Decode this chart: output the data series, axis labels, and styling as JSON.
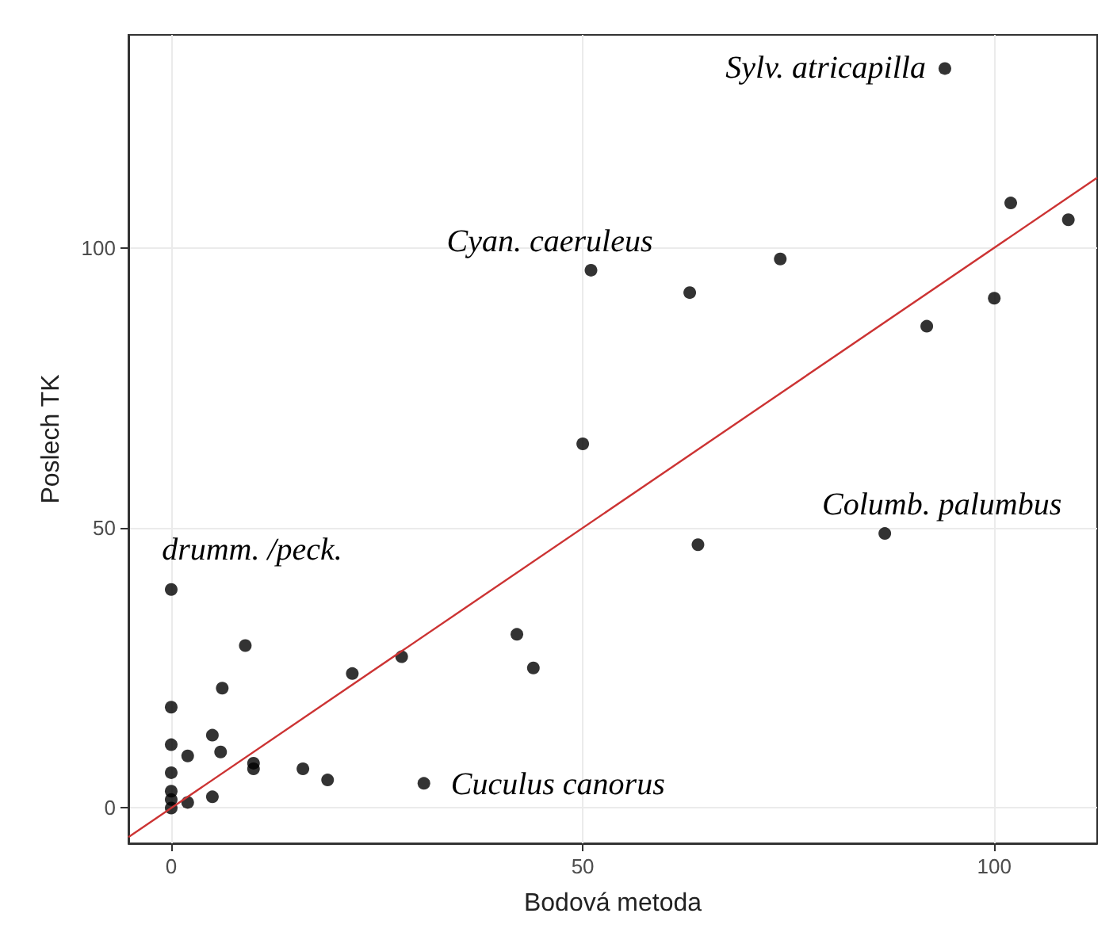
{
  "chart_data": {
    "type": "scatter",
    "xlabel": "Bodová metoda",
    "ylabel": "Poslech TK",
    "xlim": [
      -5.2,
      112.5
    ],
    "ylim": [
      -6.3,
      138
    ],
    "xticks": [
      0,
      50,
      100
    ],
    "yticks": [
      0,
      50,
      100
    ],
    "grid": true,
    "marker": "circle",
    "series": [
      {
        "color": "#000000",
        "x": [
          0,
          0,
          0,
          0,
          0,
          0,
          0,
          2,
          2,
          5,
          5,
          6.2,
          6,
          9,
          10,
          10,
          16,
          19,
          22,
          28,
          30.7,
          42,
          44,
          50,
          51,
          63,
          64,
          74,
          86.7,
          91.8,
          100,
          102,
          109,
          94
        ],
        "values": [
          39,
          18,
          11.3,
          6.3,
          3,
          1.5,
          0,
          9.3,
          1,
          2,
          13,
          21.4,
          10,
          29,
          8,
          7,
          7,
          5,
          24,
          27,
          4.4,
          31,
          25,
          65,
          96,
          92,
          47,
          98,
          49,
          86,
          91,
          108,
          105,
          132
        ]
      },
      {
        "type": "line",
        "color": "#cc3333",
        "x": [
          -5.2,
          112.5
        ],
        "values": [
          -5.2,
          112.5
        ],
        "marker": "none"
      }
    ],
    "annotations": [
      {
        "text": "Sylv. atricapilla",
        "x": 94,
        "y": 132
      },
      {
        "text": "Cyan. caeruleus",
        "x": 51,
        "y": 96
      },
      {
        "text": "Columb. palumbus",
        "x": 86.7,
        "y": 49
      },
      {
        "text": "drumm. /peck.",
        "x": 0,
        "y": 39
      },
      {
        "text": "Cuculus canorus",
        "x": 30.7,
        "y": 4.4
      }
    ]
  }
}
